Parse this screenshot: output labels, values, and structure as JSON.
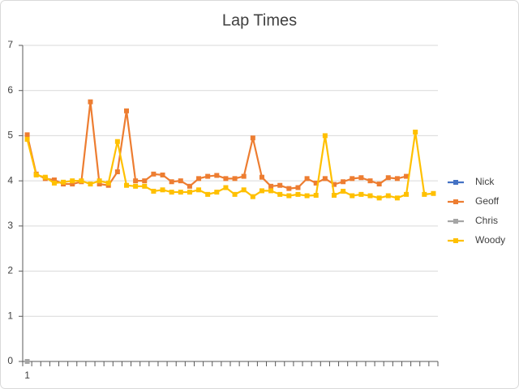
{
  "chart_data": {
    "type": "line",
    "title": "Lap Times",
    "categories": [
      "1",
      null,
      null,
      null,
      null,
      null,
      null,
      null,
      null,
      null,
      null,
      null,
      null,
      null,
      null,
      null,
      null,
      null,
      null,
      null,
      null,
      null,
      null,
      null,
      null,
      null,
      null,
      null,
      null,
      null,
      null,
      null,
      null,
      null,
      null,
      null,
      null,
      null,
      null,
      null,
      null,
      null,
      null,
      null,
      null,
      null
    ],
    "series": [
      {
        "name": "Nick",
        "color": "#4472c4",
        "values": [
          null,
          null,
          null,
          null,
          null,
          null,
          null,
          null,
          null,
          null,
          null,
          null,
          null,
          null,
          null,
          null,
          null,
          null,
          null,
          null,
          null,
          null,
          null,
          null,
          null,
          null,
          null,
          null,
          null,
          null,
          null,
          null,
          null,
          null,
          null,
          null,
          null,
          null,
          null,
          null,
          null,
          null,
          null,
          null,
          null,
          null
        ]
      },
      {
        "name": "Geoff",
        "color": "#ed7d31",
        "values": [
          5.02,
          4.15,
          4.05,
          4.02,
          3.93,
          3.93,
          3.98,
          5.75,
          3.93,
          3.9,
          4.2,
          5.55,
          4.0,
          4.0,
          4.15,
          4.13,
          3.98,
          4.0,
          3.88,
          4.05,
          4.1,
          4.12,
          4.05,
          4.05,
          4.1,
          4.95,
          4.08,
          3.88,
          3.9,
          3.83,
          3.85,
          4.05,
          3.95,
          4.05,
          3.92,
          3.98,
          4.05,
          4.07,
          4.0,
          3.93,
          4.07,
          4.05,
          4.1,
          null,
          null,
          null
        ]
      },
      {
        "name": "Chris",
        "color": "#a5a5a5",
        "values": [
          0,
          null,
          null,
          null,
          null,
          null,
          null,
          null,
          null,
          null,
          null,
          null,
          null,
          null,
          null,
          null,
          null,
          null,
          null,
          null,
          null,
          null,
          null,
          null,
          null,
          null,
          null,
          null,
          null,
          null,
          null,
          null,
          null,
          null,
          null,
          null,
          null,
          null,
          null,
          null,
          null,
          null,
          null,
          null,
          null,
          null
        ]
      },
      {
        "name": "Woody",
        "color": "#ffc000",
        "values": [
          4.92,
          4.13,
          4.08,
          3.95,
          3.97,
          4.0,
          4.0,
          3.93,
          4.0,
          3.95,
          4.87,
          3.9,
          3.88,
          3.88,
          3.77,
          3.8,
          3.75,
          3.75,
          3.75,
          3.8,
          3.7,
          3.75,
          3.85,
          3.7,
          3.8,
          3.65,
          3.78,
          3.78,
          3.7,
          3.67,
          3.7,
          3.67,
          3.68,
          5.0,
          3.68,
          3.77,
          3.67,
          3.7,
          3.67,
          3.62,
          3.67,
          3.62,
          3.7,
          5.08,
          3.7,
          3.72
        ]
      }
    ],
    "ylim": [
      0,
      7
    ],
    "yticks": [
      0,
      1,
      2,
      3,
      4,
      5,
      6,
      7
    ],
    "grid": true,
    "legend": "right"
  }
}
